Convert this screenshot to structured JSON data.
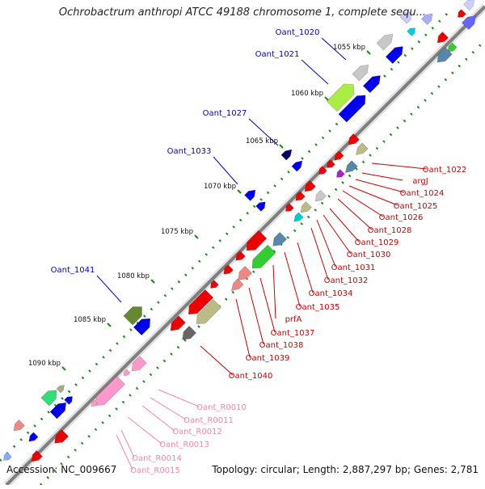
{
  "title": "Ochrobactrum anthropi ATCC 49188 chromosome 1, complete sequ...",
  "footer": {
    "accession": "Accession: NC_009667",
    "summary": "Topology: circular; Length: 2,887,297 bp; Genes: 2,781"
  },
  "colors": {
    "backbone": "#7f7f7f",
    "label_blue": "#0000cc",
    "label_red": "#cc0000",
    "label_pink": "#ee88aa",
    "tick_green": "#1a8a1a"
  },
  "scale_labels": [
    "1055 kbp",
    "1060 kbp",
    "1065 kbp",
    "1070 kbp",
    "1075 kbp",
    "1080 kbp",
    "1085 kbp",
    "1090 kbp"
  ],
  "gene_labels_forward": [
    "Oant_1020",
    "Oant_1021",
    "Oant_1027",
    "Oant_1033",
    "Oant_1041"
  ],
  "gene_labels_reverse": [
    "Oant_1022",
    "argJ",
    "Oant_1024",
    "Oant_1025",
    "Oant_1026",
    "Oant_1028",
    "Oant_1029",
    "Oant_1030",
    "Oant_1031",
    "Oant_1032",
    "Oant_1034",
    "Oant_1035",
    "prfA",
    "Oant_1037",
    "Oant_1038",
    "Oant_1039",
    "Oant_1040"
  ],
  "gene_labels_rna": [
    "Oant_R0010",
    "Oant_R0011",
    "Oant_R0012",
    "Oant_R0013",
    "Oant_R0014",
    "Oant_R0015"
  ]
}
